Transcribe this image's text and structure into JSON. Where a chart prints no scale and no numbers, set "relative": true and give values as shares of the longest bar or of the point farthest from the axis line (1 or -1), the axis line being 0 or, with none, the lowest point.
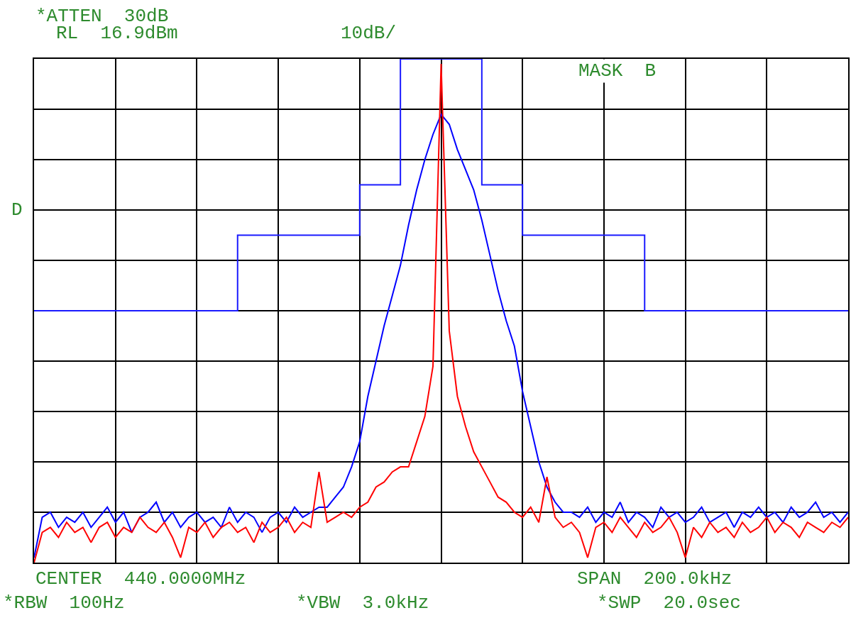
{
  "chart_data": {
    "type": "line",
    "annotations": [
      "*ATTEN  30dB",
      "RL  16.9dBm",
      "10dB/",
      "MASK  B",
      "D",
      "CENTER  440.0000MHz",
      "SPAN  200.0kHz",
      "*RBW  100Hz",
      "*VBW  3.0kHz",
      "*SWP  20.0sec"
    ],
    "categories": [
      null,
      null,
      null,
      null,
      null,
      null,
      null,
      null,
      null,
      null,
      null,
      null,
      null,
      null,
      null,
      null,
      null,
      null,
      null,
      null,
      null,
      null,
      null,
      null,
      null,
      null,
      null,
      null,
      null,
      null,
      null,
      null,
      null,
      null,
      null,
      null,
      null,
      null,
      null,
      null,
      null,
      null,
      null,
      null,
      null,
      null,
      null,
      null,
      null,
      null,
      null,
      null,
      null,
      null,
      null,
      null,
      null,
      null,
      null,
      null,
      null,
      null,
      null,
      null,
      null,
      null,
      null,
      null,
      null,
      null,
      null,
      null,
      null,
      null,
      null,
      null,
      null,
      null,
      null,
      null,
      null,
      null,
      null,
      null,
      null,
      null,
      null,
      null,
      null,
      null,
      null,
      null,
      null,
      null,
      null,
      null,
      null,
      null,
      null,
      null,
      null
    ],
    "relative": true,
    "grid": true,
    "marker": "none",
    "line_style": "solid",
    "series": [
      {
        "type": "step",
        "color": "#1a1aff",
        "values": [
          0.5,
          0.5,
          0.5,
          0.5,
          0.5,
          0.5,
          0.5,
          0.5,
          0.5,
          0.5,
          0.5,
          0.5,
          0.5,
          0.5,
          0.5,
          0.5,
          0.5,
          0.5,
          0.5,
          0.5,
          0.5,
          0.5,
          0.5,
          0.5,
          0.5,
          0.65,
          0.65,
          0.65,
          0.65,
          0.65,
          0.65,
          0.65,
          0.65,
          0.65,
          0.65,
          0.65,
          0.65,
          0.65,
          0.65,
          0.65,
          0.75,
          0.75,
          0.75,
          0.75,
          0.75,
          1,
          1,
          1,
          1,
          1,
          1,
          1,
          1,
          1,
          1,
          0.75,
          0.75,
          0.75,
          0.75,
          0.75,
          0.65,
          0.65,
          0.65,
          0.65,
          0.65,
          0.65,
          0.65,
          0.65,
          0.65,
          0.65,
          0.65,
          0.65,
          0.65,
          0.65,
          0.65,
          0.5,
          0.5,
          0.5,
          0.5,
          0.5,
          0.5,
          0.5,
          0.5,
          0.5,
          0.5,
          0.5,
          0.5,
          0.5,
          0.5,
          0.5,
          0.5,
          0.5,
          0.5,
          0.5,
          0.5,
          0.5,
          0.5,
          0.5,
          0.5,
          0.5,
          0.5
        ]
      },
      {
        "color": "#0000ff",
        "values": [
          0.01,
          0.09,
          0.1,
          0.07,
          0.09,
          0.08,
          0.1,
          0.07,
          0.09,
          0.11,
          0.08,
          0.1,
          0.06,
          0.09,
          0.1,
          0.12,
          0.08,
          0.1,
          0.07,
          0.09,
          0.1,
          0.08,
          0.09,
          0.07,
          0.11,
          0.08,
          0.1,
          0.09,
          0.06,
          0.09,
          0.1,
          0.08,
          0.11,
          0.09,
          0.1,
          0.11,
          0.11,
          0.13,
          0.15,
          0.19,
          0.24,
          0.33,
          0.4,
          0.47,
          0.53,
          0.59,
          0.67,
          0.74,
          0.8,
          0.85,
          0.89,
          0.87,
          0.82,
          0.78,
          0.74,
          0.68,
          0.61,
          0.54,
          0.48,
          0.43,
          0.34,
          0.27,
          0.2,
          0.15,
          0.12,
          0.1,
          0.1,
          0.09,
          0.11,
          0.08,
          0.1,
          0.09,
          0.12,
          0.08,
          0.1,
          0.09,
          0.07,
          0.11,
          0.09,
          0.1,
          0.08,
          0.09,
          0.11,
          0.08,
          0.09,
          0.1,
          0.07,
          0.1,
          0.09,
          0.11,
          0.09,
          0.1,
          0.08,
          0.11,
          0.09,
          0.1,
          0.12,
          0.09,
          0.1,
          0.08,
          0.1
        ]
      },
      {
        "color": "#ff0000",
        "values": [
          0.0,
          0.06,
          0.07,
          0.05,
          0.08,
          0.06,
          0.07,
          0.04,
          0.07,
          0.08,
          0.05,
          0.07,
          0.06,
          0.09,
          0.07,
          0.06,
          0.08,
          0.05,
          0.01,
          0.07,
          0.06,
          0.08,
          0.05,
          0.07,
          0.08,
          0.06,
          0.07,
          0.04,
          0.08,
          0.06,
          0.07,
          0.09,
          0.06,
          0.08,
          0.07,
          0.18,
          0.08,
          0.09,
          0.1,
          0.09,
          0.11,
          0.12,
          0.15,
          0.16,
          0.18,
          0.19,
          0.19,
          0.24,
          0.29,
          0.39,
          0.99,
          0.46,
          0.33,
          0.27,
          0.22,
          0.19,
          0.16,
          0.13,
          0.12,
          0.1,
          0.09,
          0.11,
          0.08,
          0.17,
          0.09,
          0.07,
          0.08,
          0.06,
          0.01,
          0.07,
          0.08,
          0.06,
          0.09,
          0.07,
          0.05,
          0.08,
          0.06,
          0.07,
          0.09,
          0.06,
          0.01,
          0.07,
          0.05,
          0.08,
          0.06,
          0.07,
          0.05,
          0.08,
          0.06,
          0.07,
          0.09,
          0.06,
          0.08,
          0.07,
          0.05,
          0.08,
          0.07,
          0.06,
          0.08,
          0.07,
          0.09
        ]
      }
    ]
  }
}
